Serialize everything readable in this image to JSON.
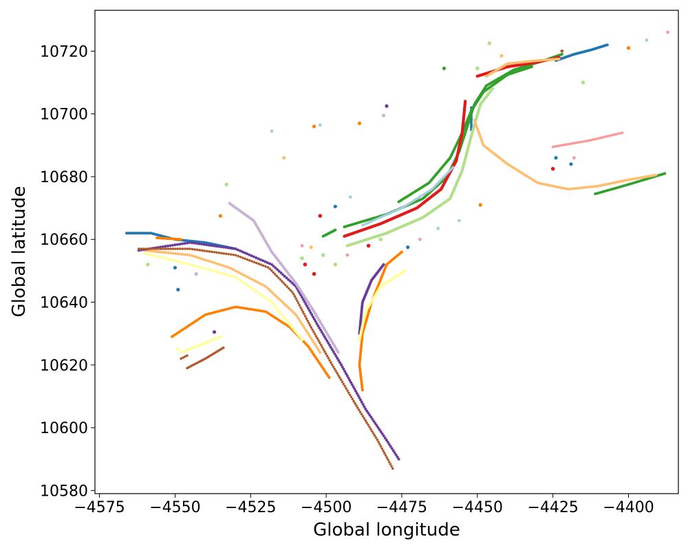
{
  "chart_data": {
    "type": "scatter",
    "title": "",
    "xlabel": "Global longitude",
    "ylabel": "Global latitude",
    "xlim": [
      -4576.5,
      -4383.5
    ],
    "ylim": [
      10579,
      10733
    ],
    "xticks": [
      -4575,
      -4550,
      -4525,
      -4500,
      -4475,
      -4450,
      -4425,
      -4400
    ],
    "xtick_labels": [
      "−4575",
      "−4550",
      "−4525",
      "−4500",
      "−4475",
      "−4450",
      "−4425",
      "−4400"
    ],
    "yticks": [
      10580,
      10600,
      10620,
      10640,
      10660,
      10680,
      10700,
      10720
    ],
    "ytick_labels": [
      "10580",
      "10600",
      "10620",
      "10640",
      "10660",
      "10680",
      "10700",
      "10720"
    ],
    "grid": false,
    "legend": "none",
    "series": [
      {
        "color": "#1f78b4",
        "r": 2.0,
        "segments": [
          {
            "points": [
              [
                -4566,
                10662
              ],
              [
                -4558,
                10662
              ],
              [
                -4550,
                10660
              ],
              [
                -4540,
                10659
              ],
              [
                -4530,
                10657
              ]
            ],
            "n": 60
          },
          {
            "points": [
              [
                -4424,
                10717
              ],
              [
                -4418,
                10719
              ],
              [
                -4412,
                10720.5
              ],
              [
                -4407,
                10722
              ]
            ],
            "n": 40
          },
          {
            "points": [
              [
                -4452,
                10702
              ],
              [
                -4452,
                10695
              ]
            ],
            "n": 10
          }
        ],
        "scatter": [
          [
            -4550,
            10651
          ],
          [
            -4549,
            10644
          ],
          [
            -4497,
            10670.5
          ],
          [
            -4473,
            10657.5
          ],
          [
            -4424,
            10686
          ],
          [
            -4419,
            10684
          ]
        ]
      },
      {
        "color": "#33a02c",
        "r": 2.0,
        "segments": [
          {
            "points": [
              [
                -4501,
                10661
              ],
              [
                -4497,
                10663
              ]
            ],
            "n": 12
          },
          {
            "points": [
              [
                -4494,
                10664
              ],
              [
                -4480,
                10668
              ],
              [
                -4468,
                10673
              ],
              [
                -4460,
                10680
              ],
              [
                -4456,
                10688
              ],
              [
                -4453,
                10697
              ],
              [
                -4451,
                10703
              ],
              [
                -4447,
                10709
              ],
              [
                -4438,
                10714
              ],
              [
                -4428,
                10717
              ],
              [
                -4422,
                10719
              ]
            ],
            "n": 180
          },
          {
            "points": [
              [
                -4476,
                10672
              ],
              [
                -4466,
                10678
              ],
              [
                -4459,
                10686
              ],
              [
                -4455,
                10694
              ],
              [
                -4452,
                10701
              ],
              [
                -4448,
                10707
              ],
              [
                -4440,
                10712.5
              ],
              [
                -4432,
                10715
              ]
            ],
            "n": 120
          },
          {
            "points": [
              [
                -4411,
                10674.5
              ],
              [
                -4400,
                10677.5
              ],
              [
                -4388,
                10681
              ]
            ],
            "n": 40
          }
        ],
        "scatter": [
          [
            -4461,
            10714.5
          ]
        ]
      },
      {
        "color": "#e31a1c",
        "r": 2.2,
        "segments": [
          {
            "points": [
              [
                -4494,
                10661
              ],
              [
                -4482,
                10665
              ],
              [
                -4470,
                10670
              ],
              [
                -4462,
                10676
              ],
              [
                -4457,
                10685
              ],
              [
                -4455,
                10694
              ],
              [
                -4454,
                10704
              ]
            ],
            "n": 160
          },
          {
            "points": [
              [
                -4450,
                10712
              ],
              [
                -4440,
                10715
              ],
              [
                -4430,
                10716.5
              ],
              [
                -4423,
                10718
              ]
            ],
            "n": 70
          }
        ],
        "scatter": [
          [
            -4486,
            10658
          ],
          [
            -4507,
            10652
          ],
          [
            -4504,
            10649
          ],
          [
            -4502,
            10667.5
          ],
          [
            -4425,
            10682.5
          ]
        ]
      },
      {
        "color": "#b2df8a",
        "r": 2.2,
        "segments": [
          {
            "points": [
              [
                -4493,
                10658
              ],
              [
                -4480,
                10662
              ],
              [
                -4468,
                10667
              ],
              [
                -4459,
                10673
              ],
              [
                -4455,
                10682
              ],
              [
                -4452,
                10693
              ],
              [
                -4449,
                10703
              ],
              [
                -4445,
                10708
              ]
            ],
            "n": 150
          }
        ],
        "scatter": [
          [
            -4533,
            10677.5
          ],
          [
            -4508,
            10654
          ],
          [
            -4501,
            10655
          ],
          [
            -4497,
            10652
          ],
          [
            -4482,
            10660
          ],
          [
            -4450,
            10714.5
          ],
          [
            -4446,
            10722.5
          ],
          [
            -4415,
            10710
          ],
          [
            -4559,
            10652
          ]
        ]
      },
      {
        "color": "#a6cee3",
        "r": 1.8,
        "segments": [
          {
            "points": [
              [
                -4488,
                10664.5
              ],
              [
                -4475,
                10670
              ],
              [
                -4465,
                10676
              ],
              [
                -4458,
                10683
              ]
            ],
            "n": 60
          }
        ],
        "scatter": [
          [
            -4518,
            10694.5
          ],
          [
            -4502,
            10696.5
          ],
          [
            -4492,
            10673.5
          ],
          [
            -4463,
            10663.5
          ],
          [
            -4456,
            10666
          ],
          [
            -4394,
            10723.5
          ]
        ]
      },
      {
        "color": "#fdbf6f",
        "r": 2.0,
        "segments": [
          {
            "points": [
              [
                -4451,
                10698
              ],
              [
                -4448,
                10690
              ],
              [
                -4440,
                10684
              ],
              [
                -4430,
                10678
              ],
              [
                -4420,
                10676
              ],
              [
                -4410,
                10677
              ],
              [
                -4400,
                10679
              ],
              [
                -4391,
                10680.5
              ]
            ],
            "n": 110
          },
          {
            "points": [
              [
                -4447,
                10712
              ],
              [
                -4440,
                10716
              ],
              [
                -4430,
                10717
              ],
              [
                -4423,
                10717.5
              ]
            ],
            "n": 50
          },
          {
            "points": [
              [
                -4560,
                10656.5
              ],
              [
                -4545,
                10655
              ],
              [
                -4532,
                10651
              ],
              [
                -4520,
                10645
              ],
              [
                -4510,
                10636
              ],
              [
                -4502,
                10624
              ]
            ],
            "n": 90
          }
        ],
        "scatter": [
          [
            -4514,
            10686
          ],
          [
            -4505,
            10657.5
          ],
          [
            -4449,
            10671
          ],
          [
            -4442,
            10718.5
          ],
          [
            -4400,
            10721
          ]
        ]
      },
      {
        "color": "#ff7f00",
        "r": 2.0,
        "segments": [
          {
            "points": [
              [
                -4551,
                10629
              ],
              [
                -4540,
                10636
              ],
              [
                -4530,
                10638.5
              ],
              [
                -4520,
                10637
              ],
              [
                -4512,
                10632
              ],
              [
                -4506,
                10626
              ],
              [
                -4499,
                10616
              ]
            ],
            "n": 90
          },
          {
            "points": [
              [
                -4475,
                10656
              ],
              [
                -4480,
                10652
              ],
              [
                -4485,
                10640
              ],
              [
                -4488,
                10630
              ],
              [
                -4489,
                10620
              ],
              [
                -4488,
                10612
              ]
            ],
            "n": 80
          },
          {
            "points": [
              [
                -4556,
                10660.5
              ],
              [
                -4548,
                10660
              ]
            ],
            "n": 15
          }
        ],
        "scatter": [
          [
            -4535,
            10667.5
          ],
          [
            -4504,
            10696
          ],
          [
            -4489,
            10697
          ],
          [
            -4400,
            10721
          ],
          [
            -4449,
            10671
          ]
        ]
      },
      {
        "color": "#6a3d9a",
        "r": 2.0,
        "segments": [
          {
            "points": [
              [
                -4562,
                10656.5
              ],
              [
                -4545,
                10659
              ],
              [
                -4530,
                10657
              ],
              [
                -4518,
                10652
              ],
              [
                -4510,
                10645
              ],
              [
                -4503,
                10633
              ],
              [
                -4495,
                10620
              ],
              [
                -4487,
                10606
              ],
              [
                -4480,
                10596
              ],
              [
                -4476,
                10590
              ]
            ],
            "n": 150
          },
          {
            "points": [
              [
                -4481,
                10652
              ],
              [
                -4485,
                10647
              ],
              [
                -4488,
                10640
              ],
              [
                -4489,
                10630
              ]
            ],
            "n": 50
          }
        ],
        "scatter": [
          [
            -4480,
            10702.5
          ],
          [
            -4537,
            10630.5
          ]
        ]
      },
      {
        "color": "#cab2d6",
        "r": 2.0,
        "segments": [
          {
            "points": [
              [
                -4532,
                10671.5
              ],
              [
                -4524,
                10666
              ],
              [
                -4518,
                10656
              ],
              [
                -4510,
                10646
              ],
              [
                -4504,
                10637
              ],
              [
                -4496,
                10624
              ]
            ],
            "n": 120
          }
        ],
        "scatter": [
          [
            -4543,
            10649
          ],
          [
            -4481,
            10699.5
          ]
        ]
      },
      {
        "color": "#b15928",
        "r": 1.8,
        "segments": [
          {
            "points": [
              [
                -4562,
                10657
              ],
              [
                -4545,
                10657
              ],
              [
                -4530,
                10655
              ],
              [
                -4519,
                10651
              ],
              [
                -4511,
                10643
              ],
              [
                -4505,
                10632
              ],
              [
                -4498,
                10620
              ],
              [
                -4490,
                10607
              ],
              [
                -4483,
                10596
              ],
              [
                -4478,
                10587
              ]
            ],
            "n": 150
          },
          {
            "points": [
              [
                -4546,
                10619
              ],
              [
                -4540,
                10622
              ],
              [
                -4534,
                10625.5
              ]
            ],
            "n": 25
          },
          {
            "points": [
              [
                -4548,
                10622
              ],
              [
                -4546,
                10623
              ]
            ],
            "n": 4
          }
        ],
        "scatter": [
          [
            -4422,
            10720
          ]
        ]
      },
      {
        "color": "#ffff99",
        "r": 2.0,
        "segments": [
          {
            "points": [
              [
                -4474,
                10650
              ],
              [
                -4482,
                10645
              ],
              [
                -4487,
                10637
              ],
              [
                -4489,
                10628
              ]
            ],
            "n": 60
          },
          {
            "points": [
              [
                -4548,
                10624
              ],
              [
                -4540,
                10627
              ],
              [
                -4535,
                10629
              ]
            ],
            "n": 25
          },
          {
            "points": [
              [
                -4560,
                10655.5
              ],
              [
                -4545,
                10652
              ],
              [
                -4530,
                10648
              ],
              [
                -4518,
                10640
              ],
              [
                -4508,
                10628
              ]
            ],
            "n": 70
          }
        ],
        "scatter": [
          [
            -4549,
            10625
          ]
        ]
      },
      {
        "color": "#fb9a99",
        "r": 1.8,
        "segments": [
          {
            "points": [
              [
                -4425,
                10689.5
              ],
              [
                -4413,
                10691.5
              ],
              [
                -4402,
                10694
              ]
            ],
            "n": 50
          }
        ],
        "scatter": [
          [
            -4508,
            10658
          ],
          [
            -4493,
            10655
          ],
          [
            -4469,
            10660
          ],
          [
            -4418,
            10686
          ],
          [
            -4387,
            10726
          ]
        ]
      }
    ]
  }
}
